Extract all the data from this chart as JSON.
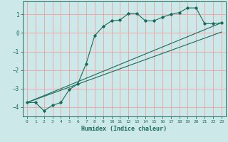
{
  "xlabel": "Humidex (Indice chaleur)",
  "bg_color": "#cce8e8",
  "grid_color": "#e8aaaa",
  "line_color": "#1a6b5a",
  "xlim": [
    -0.5,
    23.5
  ],
  "ylim": [
    -4.5,
    1.7
  ],
  "xticks": [
    0,
    1,
    2,
    3,
    4,
    5,
    6,
    7,
    8,
    9,
    10,
    11,
    12,
    13,
    14,
    15,
    16,
    17,
    18,
    19,
    20,
    21,
    22,
    23
  ],
  "yticks": [
    -4,
    -3,
    -2,
    -1,
    0,
    1
  ],
  "curve_x": [
    0,
    1,
    2,
    3,
    4,
    5,
    6,
    7,
    8,
    9,
    10,
    11,
    12,
    13,
    14,
    15,
    16,
    17,
    18,
    19,
    20,
    21,
    22,
    23
  ],
  "curve_y": [
    -3.75,
    -3.75,
    -4.2,
    -3.9,
    -3.75,
    -3.05,
    -2.75,
    -1.65,
    -0.15,
    0.35,
    0.65,
    0.7,
    1.05,
    1.05,
    0.65,
    0.65,
    0.85,
    1.0,
    1.1,
    1.35,
    1.35,
    0.5,
    0.5,
    0.55
  ],
  "line1_x": [
    0,
    23
  ],
  "line1_y": [
    -3.75,
    0.55
  ],
  "line2_x": [
    0,
    23
  ],
  "line2_y": [
    -3.75,
    0.05
  ]
}
